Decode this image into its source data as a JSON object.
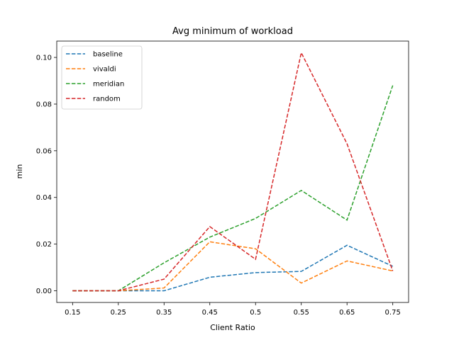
{
  "chart_data": {
    "type": "line",
    "title": "Avg minimum of workload",
    "xlabel": "Client Ratio",
    "ylabel": "min",
    "categories": [
      "0.15",
      "0.25",
      "0.35",
      "0.45",
      "0.5",
      "0.55",
      "0.65",
      "0.75"
    ],
    "ylim": [
      -0.005,
      0.107
    ],
    "yticks": [
      0.0,
      0.02,
      0.04,
      0.06,
      0.08,
      0.1
    ],
    "ytick_labels": [
      "0.00",
      "0.02",
      "0.04",
      "0.06",
      "0.08",
      "0.10"
    ],
    "grid": false,
    "legend_position": "top-left",
    "line_style": "dashed",
    "series": [
      {
        "name": "baseline",
        "color": "#1f77b4",
        "values": [
          0.0,
          0.0,
          0.0,
          0.0058,
          0.0078,
          0.0083,
          0.0195,
          0.0105
        ]
      },
      {
        "name": "vivaldi",
        "color": "#ff7f0e",
        "values": [
          0.0,
          0.0,
          0.0012,
          0.021,
          0.018,
          0.0033,
          0.0128,
          0.0085
        ]
      },
      {
        "name": "meridian",
        "color": "#2ca02c",
        "values": [
          0.0,
          0.0,
          0.012,
          0.023,
          0.031,
          0.043,
          0.0303,
          0.088
        ]
      },
      {
        "name": "random",
        "color": "#d62728",
        "values": [
          0.0,
          0.0,
          0.005,
          0.0275,
          0.0135,
          0.102,
          0.063,
          0.0085
        ]
      }
    ]
  }
}
